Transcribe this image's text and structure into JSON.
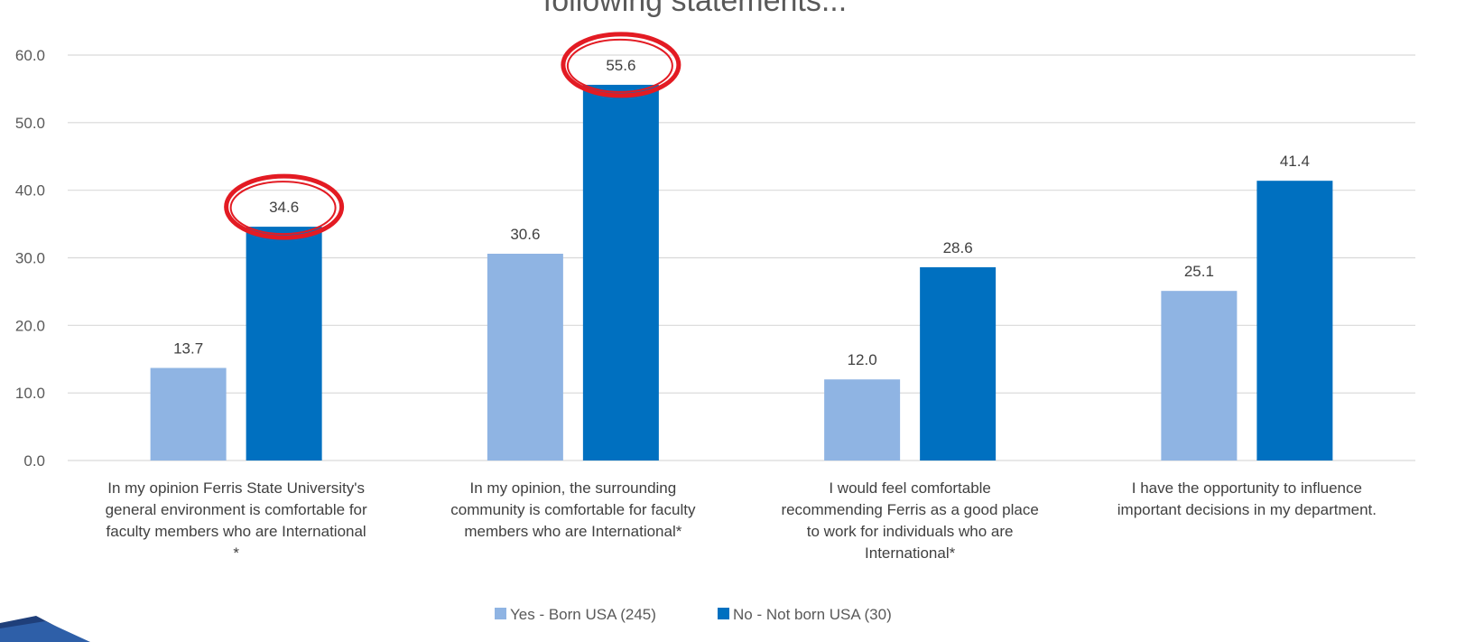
{
  "chart_data": {
    "type": "bar",
    "title": "following statements...",
    "categories": [
      [
        "In my opinion Ferris State University's",
        "general environment is comfortable for",
        "faculty members who are International",
        "*"
      ],
      [
        "In my opinion, the surrounding",
        "community is comfortable for faculty",
        "members who are International*"
      ],
      [
        "I would feel comfortable",
        "recommending Ferris as a good place",
        "to work for individuals who are",
        "International*"
      ],
      [
        "I have the opportunity to influence",
        "important decisions in my department."
      ]
    ],
    "series": [
      {
        "name": "Yes - Born USA (245)",
        "color": "#8FB4E3",
        "values": [
          13.7,
          30.6,
          12.0,
          25.1
        ]
      },
      {
        "name": "No - Not born USA (30)",
        "color": "#0070C0",
        "values": [
          34.6,
          55.6,
          28.6,
          41.4
        ]
      }
    ],
    "ylim": [
      0,
      60
    ],
    "yticks": [
      0.0,
      10.0,
      20.0,
      30.0,
      40.0,
      50.0,
      60.0
    ],
    "grid": true,
    "legend": "bottom",
    "highlighted": [
      {
        "series": 1,
        "category": 0,
        "value": 34.6
      },
      {
        "series": 1,
        "category": 1,
        "value": 55.6
      }
    ],
    "highlight_color": "#E31B23"
  }
}
